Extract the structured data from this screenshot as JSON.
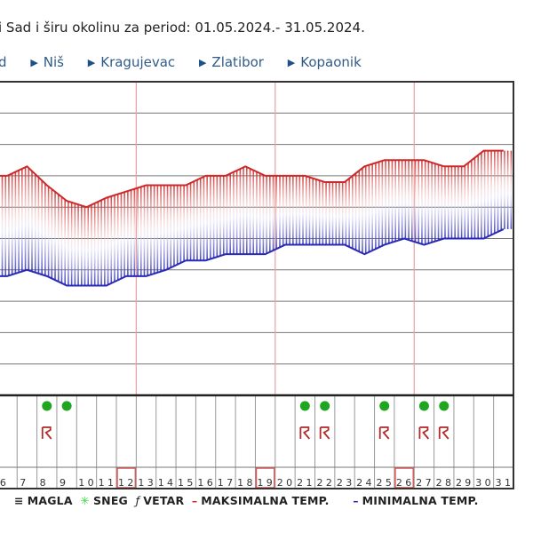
{
  "header": {
    "title": "i Sad i širu okolinu za period: 01.05.2024.- 31.05.2024."
  },
  "nav": {
    "items": [
      "d",
      "Niš",
      "Kragujevac",
      "Zlatibor",
      "Kopaonik"
    ]
  },
  "legend": {
    "fog": "MAGLA",
    "snow": "SNEG",
    "wind": "VETAR",
    "max": "MAKSIMALNA TEMP.",
    "min": "MINIMALNA TEMP."
  },
  "colors": {
    "max": "#cc2a2a",
    "min": "#2a2ab8",
    "nav": "#2f5b8a",
    "sun": "#1fa51f",
    "rain": "#b02a2a",
    "week_marker": "#e05050"
  },
  "chart_data": {
    "type": "line",
    "x": [
      6,
      7,
      8,
      9,
      10,
      11,
      12,
      13,
      14,
      15,
      16,
      17,
      18,
      19,
      20,
      21,
      22,
      23,
      24,
      25,
      26,
      27,
      28,
      29,
      30,
      31
    ],
    "ylim": [
      -10,
      40
    ],
    "grid": true,
    "series": [
      {
        "name": "MAKSIMALNA TEMP.",
        "values": [
          25,
          26.5,
          23.5,
          21,
          20,
          21.5,
          22.5,
          23.5,
          23.5,
          23.5,
          25,
          25,
          26.5,
          25,
          25,
          25,
          24,
          24,
          26.5,
          27.5,
          27.5,
          27.5,
          26.5,
          26.5,
          29,
          29
        ]
      },
      {
        "name": "MINIMALNA TEMP.",
        "values": [
          9,
          10,
          9,
          7.5,
          7.5,
          7.5,
          9,
          9,
          10,
          11.5,
          11.5,
          12.5,
          12.5,
          12.5,
          14,
          14,
          14,
          14,
          12.5,
          14,
          15,
          14,
          15,
          15,
          15,
          16.5
        ]
      }
    ],
    "highlighted_days": [
      12,
      19,
      26
    ],
    "icon_row_1": {
      "icon": "green-dot-icon",
      "days": [
        8,
        9,
        21,
        22,
        25,
        27,
        28
      ]
    },
    "icon_row_2": {
      "icon": "rain-icon",
      "days": [
        8,
        21,
        22,
        25,
        27,
        28
      ]
    }
  }
}
